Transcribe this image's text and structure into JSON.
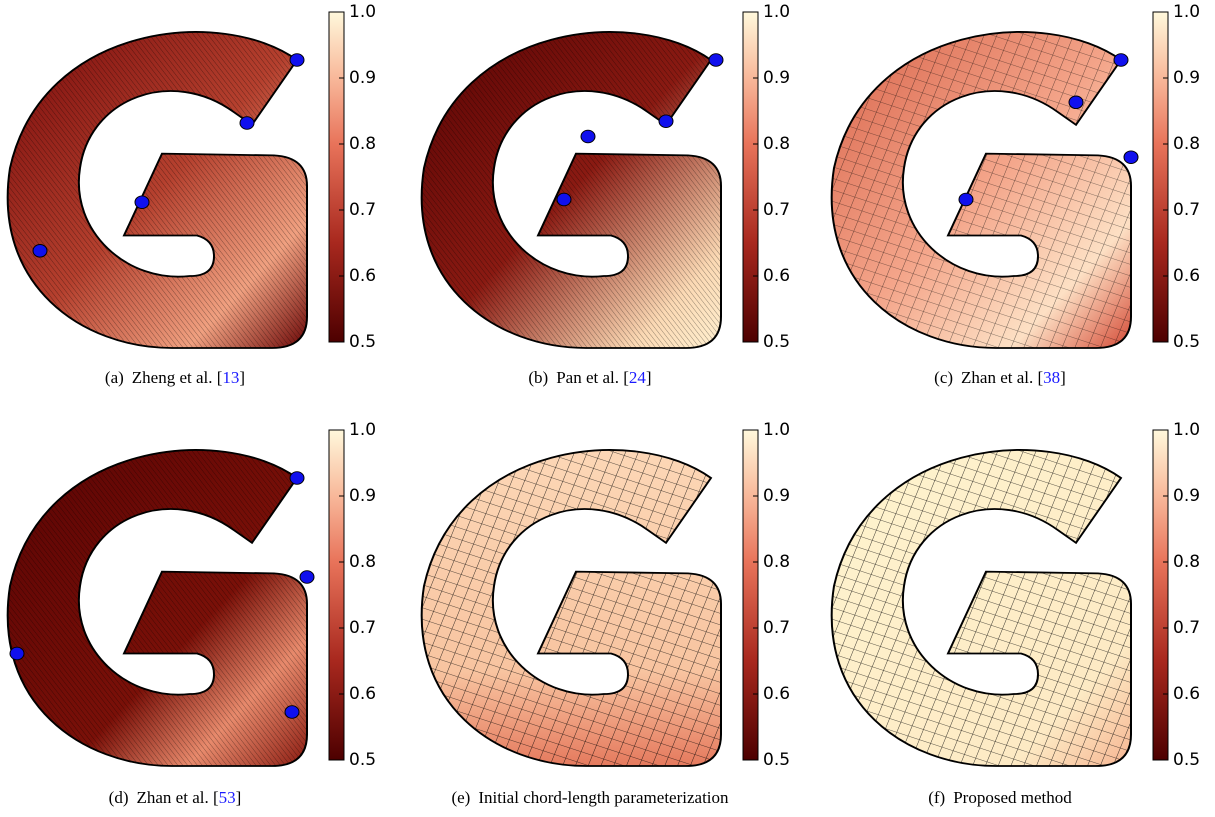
{
  "panels": [
    {
      "label": "(a)",
      "caption": "Zheng et al. [",
      "cite": "13",
      "caption_end": "]"
    },
    {
      "label": "(b)",
      "caption": "Pan et al. [",
      "cite": "24",
      "caption_end": "]"
    },
    {
      "label": "(c)",
      "caption": "Zhan et al. [",
      "cite": "38",
      "caption_end": "]"
    },
    {
      "label": "(d)",
      "caption": "Zhan et al. [",
      "cite": "53",
      "caption_end": "]"
    },
    {
      "label": "(e)",
      "caption": "Initial chord-length parameterization"
    },
    {
      "label": "(f)",
      "caption": "Proposed method"
    }
  ],
  "colorbar": {
    "lim": [
      0.5,
      1
    ],
    "ticks": [
      0.5,
      0.6,
      0.7,
      0.8,
      0.9,
      {
        "value": 1,
        "label": "1.0"
      }
    ]
  }
}
